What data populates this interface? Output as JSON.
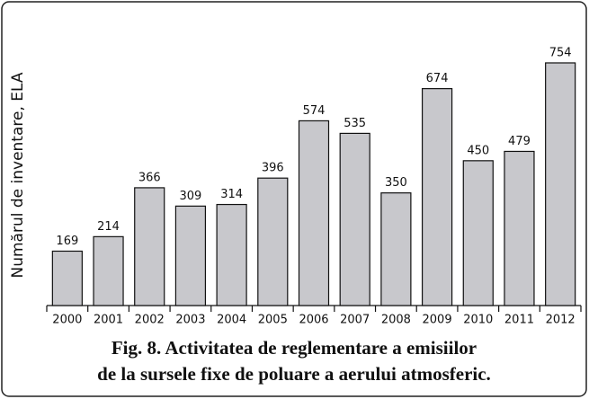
{
  "chart_data": {
    "type": "bar",
    "ylabel": "Numărul de inventare, ELA",
    "caption": [
      "Fig. 8.  Activitatea de reglementare a emisiilor",
      "de la sursele fixe de poluare a aerului atmosferic."
    ],
    "categories": [
      "2000",
      "2001",
      "2002",
      "2003",
      "2004",
      "2005",
      "2006",
      "2007",
      "2008",
      "2009",
      "2010",
      "2011",
      "2012"
    ],
    "values": [
      169,
      214,
      366,
      309,
      314,
      396,
      574,
      535,
      350,
      674,
      450,
      479,
      754
    ],
    "color": "#c8c8cc",
    "ylim": [
      0,
      800
    ]
  }
}
